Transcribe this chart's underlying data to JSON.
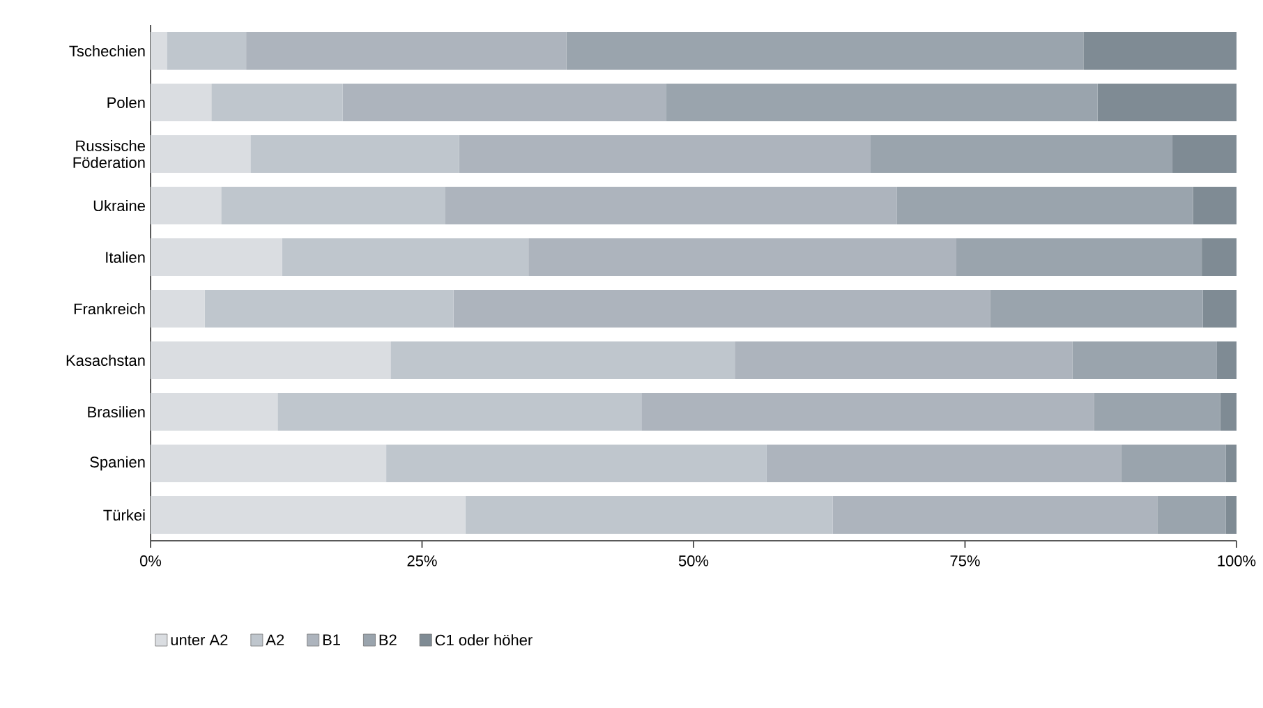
{
  "chart_data": {
    "type": "bar",
    "orientation": "horizontal",
    "stacked": true,
    "legend": "bottom left",
    "categories": [
      "Tschechien",
      "Polen",
      "Russische Föderation",
      "Ukraine",
      "Italien",
      "Frankreich",
      "Kasachstan",
      "Brasilien",
      "Spanien",
      "Türkei"
    ],
    "xlim": [
      0,
      100
    ],
    "xticks": [
      {
        "value": 0,
        "label": "0%"
      },
      {
        "value": 25,
        "label": "25%"
      },
      {
        "value": 50,
        "label": "50%"
      },
      {
        "value": 75,
        "label": "75%"
      },
      {
        "value": 100,
        "label": "100%"
      }
    ],
    "series": [
      {
        "name": "unter A2",
        "color": "#dadde1",
        "values": [
          1.5,
          5.6,
          9.2,
          6.5,
          12.1,
          5.0,
          22.1,
          11.7,
          21.7,
          29.0
        ]
      },
      {
        "name": "A2",
        "color": "#bfc6cd",
        "values": [
          7.3,
          12.1,
          19.2,
          20.6,
          22.7,
          22.9,
          31.7,
          33.5,
          35.0,
          33.8
        ]
      },
      {
        "name": "B1",
        "color": "#adb4bd",
        "values": [
          29.5,
          29.8,
          37.9,
          41.6,
          39.4,
          49.4,
          31.1,
          41.7,
          32.7,
          29.9
        ]
      },
      {
        "name": "B2",
        "color": "#9aa4ad",
        "values": [
          47.6,
          39.7,
          27.8,
          27.3,
          22.6,
          19.6,
          13.3,
          11.6,
          9.6,
          6.3
        ]
      },
      {
        "name": "C1 oder höher",
        "color": "#7f8b94",
        "values": [
          14.1,
          12.8,
          5.9,
          4.0,
          3.2,
          3.1,
          1.8,
          1.5,
          1.0,
          1.0
        ]
      }
    ]
  }
}
